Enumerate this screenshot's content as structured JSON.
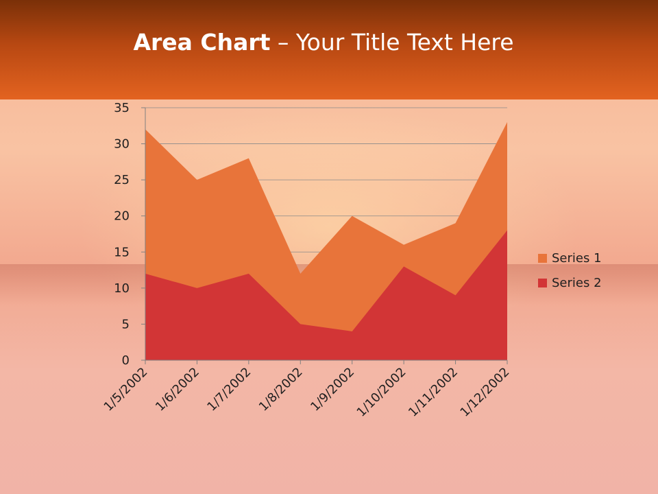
{
  "slide": {
    "title_bold": "Area Chart",
    "title_rest": " – Your Title Text Here"
  },
  "colors": {
    "series1": "#e8743a",
    "series2": "#d23536",
    "header": "#d95a1b",
    "text": "#1f1f1f"
  },
  "chart_data": {
    "type": "area",
    "categories": [
      "1/5/2002",
      "1/6/2002",
      "1/7/2002",
      "1/8/2002",
      "1/9/2002",
      "1/10/2002",
      "1/11/2002",
      "1/12/2002"
    ],
    "series": [
      {
        "name": "Series 1",
        "values": [
          32,
          25,
          28,
          12,
          20,
          16,
          19,
          33
        ]
      },
      {
        "name": "Series 2",
        "values": [
          12,
          10,
          12,
          5,
          4,
          13,
          9,
          18
        ]
      }
    ],
    "ylim": [
      0,
      35
    ],
    "yticks": [
      "0",
      "5",
      "10",
      "15",
      "20",
      "25",
      "30",
      "35"
    ],
    "grid": true,
    "legend_position": "right",
    "title": "",
    "xlabel": "",
    "ylabel": ""
  }
}
